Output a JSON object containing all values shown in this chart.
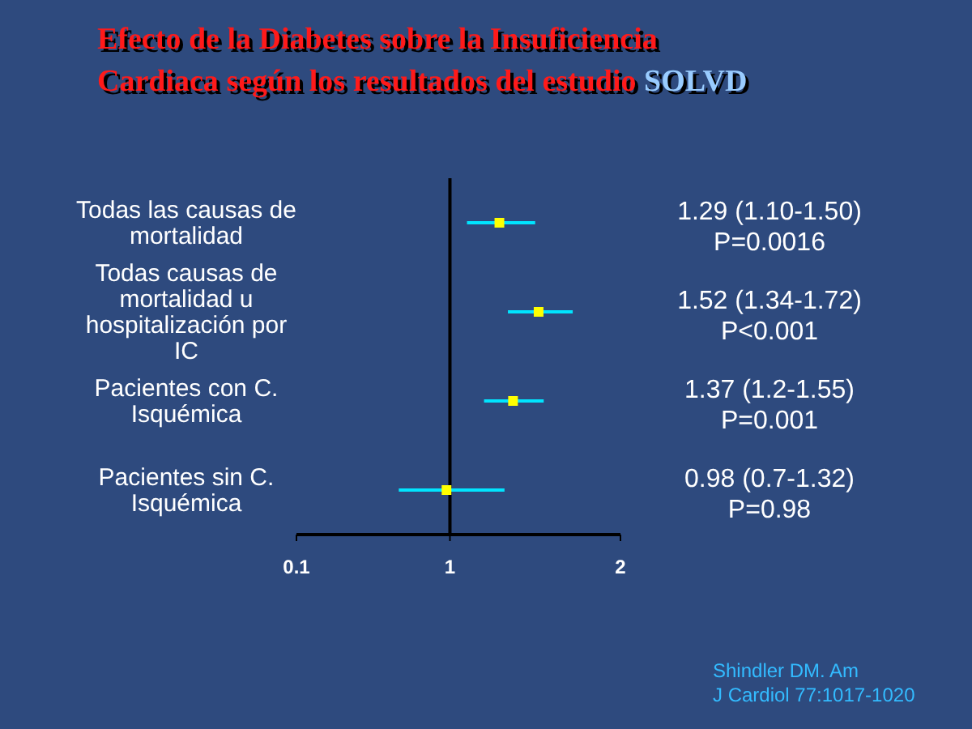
{
  "chart_data": {
    "type": "scatter",
    "orientation": "horizontal",
    "title": "Efecto de la Diabetes sobre la Insuficiencia Cardiaca según los resultados del estudio SOLVD",
    "categories": [
      "Todas las causas de mortalidad",
      "Todas causas de mortalidad  u hospitalización por IC",
      "Pacientes con C. Isquémica",
      "Pacientes sin C. Isquémica"
    ],
    "series": [
      {
        "color": "#ffff00",
        "values": [
          1.29,
          1.52,
          1.37,
          0.98
        ],
        "errors": [
          [
            1.1,
            1.5
          ],
          [
            1.34,
            1.72
          ],
          [
            1.2,
            1.55
          ],
          [
            0.7,
            1.32
          ]
        ],
        "value_labels": [
          "1.29 (1.10-1.50)\nP=0.0016",
          "1.52 (1.34-1.72)\nP<0.001",
          "1.37 (1.2-1.55)\nP=0.001",
          "0.98 (0.7-1.32)\nP=0.98"
        ]
      }
    ],
    "marker": "square",
    "xlim": [
      0.1,
      2
    ],
    "xticks": [
      0.1,
      1,
      2
    ],
    "ref_lines": [
      {
        "axis": "x",
        "value": 1
      }
    ],
    "annotations": [
      "Shindler DM.  Am J Cardiol 77:1017-1020"
    ]
  }
}
